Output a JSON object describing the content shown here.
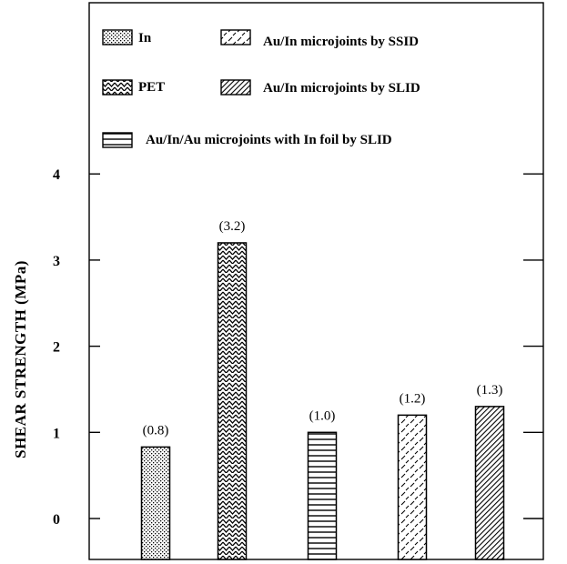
{
  "chart_data": {
    "type": "bar",
    "title": "",
    "xlabel": "",
    "ylabel": "SHEAR  STRENGTH  (MPa)",
    "ylim": [
      -0.5,
      5.4
    ],
    "yticks": [
      0,
      1,
      2,
      3,
      4
    ],
    "grid": false,
    "legend_position": "top-left",
    "categories": [
      "In",
      "PET",
      "Au/In/Au microjoints with In foil by SLID",
      "Au/In microjoints by SSID",
      "Au/In microjoints by SLID"
    ],
    "values": [
      0.83,
      3.2,
      1.0,
      1.2,
      1.3
    ],
    "data_labels": [
      "(0.8)",
      "(3.2)",
      "(1.0)",
      "(1.2)",
      "(1.3)"
    ],
    "patterns": [
      "dots",
      "waves",
      "horizontal-lines",
      "broken-diagonal",
      "dense-diagonal"
    ],
    "legend": [
      {
        "label": "In",
        "pattern": "dots"
      },
      {
        "label": "Au/In microjoints by SSID",
        "pattern": "broken-diagonal"
      },
      {
        "label": "PET",
        "pattern": "waves"
      },
      {
        "label": "Au/In microjoints by SLID",
        "pattern": "dense-diagonal"
      },
      {
        "label": "Au/In/Au microjoints with In foil by SLID",
        "pattern": "horizontal-lines"
      }
    ],
    "colors": {
      "ink": "#000000",
      "background": "#ffffff"
    }
  }
}
